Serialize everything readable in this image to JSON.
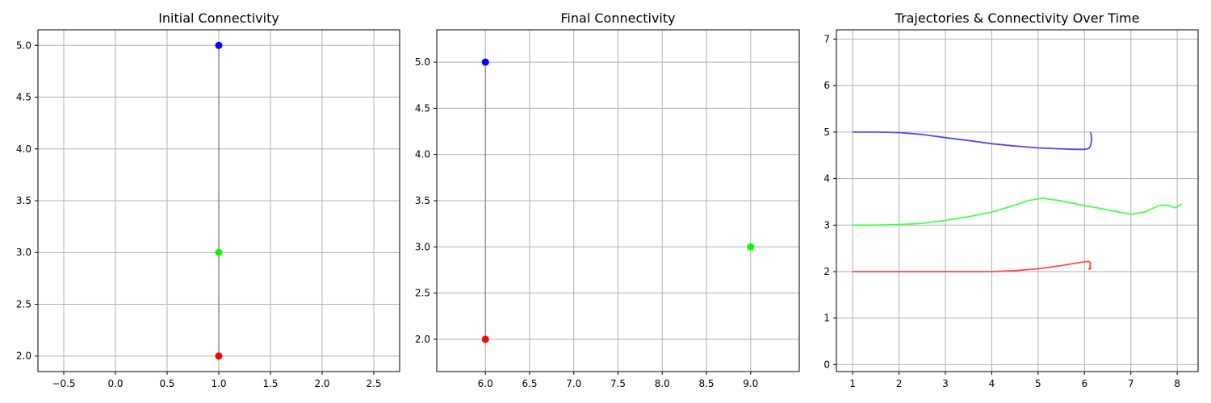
{
  "chart_data": [
    {
      "type": "scatter",
      "title": "Initial Connectivity",
      "xlim": [
        -0.75,
        2.75
      ],
      "ylim": [
        1.85,
        5.15
      ],
      "xticks": [
        -0.5,
        0.0,
        0.5,
        1.0,
        1.5,
        2.0,
        2.5
      ],
      "xtick_labels": [
        "−0.5",
        "0.0",
        "0.5",
        "1.0",
        "1.5",
        "2.0",
        "2.5"
      ],
      "yticks": [
        2.0,
        2.5,
        3.0,
        3.5,
        4.0,
        4.5,
        5.0
      ],
      "ytick_labels": [
        "2.0",
        "2.5",
        "3.0",
        "3.5",
        "4.0",
        "4.5",
        "5.0"
      ],
      "grid": true,
      "points": [
        {
          "x": 1.0,
          "y": 5.0,
          "color": "#0000ff"
        },
        {
          "x": 1.0,
          "y": 3.0,
          "color": "#00ff00"
        },
        {
          "x": 1.0,
          "y": 2.0,
          "color": "#ff0000"
        }
      ],
      "edges": [
        [
          0,
          1
        ],
        [
          1,
          2
        ],
        [
          0,
          2
        ]
      ],
      "edge_color": "#808080"
    },
    {
      "type": "scatter",
      "title": "Final Connectivity",
      "xlim": [
        5.45,
        9.55
      ],
      "ylim": [
        1.65,
        5.35
      ],
      "xticks": [
        6.0,
        6.5,
        7.0,
        7.5,
        8.0,
        8.5,
        9.0
      ],
      "xtick_labels": [
        "6.0",
        "6.5",
        "7.0",
        "7.5",
        "8.0",
        "8.5",
        "9.0"
      ],
      "yticks": [
        2.0,
        2.5,
        3.0,
        3.5,
        4.0,
        4.5,
        5.0
      ],
      "ytick_labels": [
        "2.0",
        "2.5",
        "3.0",
        "3.5",
        "4.0",
        "4.5",
        "5.0"
      ],
      "grid": true,
      "points": [
        {
          "x": 6.0,
          "y": 5.0,
          "color": "#0000ff"
        },
        {
          "x": 9.0,
          "y": 3.0,
          "color": "#00ff00"
        },
        {
          "x": 6.0,
          "y": 2.0,
          "color": "#ff0000"
        }
      ],
      "edges": [
        [
          0,
          2
        ]
      ],
      "edge_color": "#808080"
    },
    {
      "type": "line",
      "title": "Trajectories & Connectivity Over Time",
      "xlim": [
        0.65,
        8.45
      ],
      "ylim": [
        -0.15,
        7.2
      ],
      "xticks": [
        1,
        2,
        3,
        4,
        5,
        6,
        7,
        8
      ],
      "xtick_labels": [
        "1",
        "2",
        "3",
        "4",
        "5",
        "6",
        "7",
        "8"
      ],
      "yticks": [
        0,
        1,
        2,
        3,
        4,
        5,
        6,
        7
      ],
      "ytick_labels": [
        "0",
        "1",
        "2",
        "3",
        "4",
        "5",
        "6",
        "7"
      ],
      "grid": true,
      "series": [
        {
          "color": "#4a4aff",
          "x": [
            1.0,
            1.5,
            2.0,
            2.5,
            3.0,
            3.5,
            4.0,
            4.5,
            5.0,
            5.5,
            5.8,
            6.0,
            6.1,
            6.13,
            6.15,
            6.15,
            6.13
          ],
          "y": [
            5.0,
            5.0,
            4.99,
            4.95,
            4.88,
            4.82,
            4.75,
            4.7,
            4.66,
            4.64,
            4.63,
            4.63,
            4.65,
            4.7,
            4.8,
            4.92,
            5.0
          ]
        },
        {
          "color": "#4aff4a",
          "x": [
            1.0,
            1.5,
            2.0,
            2.5,
            3.0,
            3.5,
            4.0,
            4.5,
            4.8,
            5.1,
            5.5,
            6.0,
            6.5,
            7.0,
            7.3,
            7.6,
            7.8,
            7.95,
            8.05,
            8.1
          ],
          "y": [
            3.0,
            3.0,
            3.01,
            3.04,
            3.1,
            3.18,
            3.28,
            3.43,
            3.53,
            3.58,
            3.52,
            3.42,
            3.33,
            3.23,
            3.28,
            3.42,
            3.43,
            3.37,
            3.43,
            3.45
          ]
        },
        {
          "color": "#ff4a4a",
          "x": [
            1.0,
            1.5,
            2.0,
            2.5,
            3.0,
            3.5,
            4.0,
            4.5,
            5.0,
            5.5,
            5.8,
            6.0,
            6.1,
            6.13,
            6.12,
            6.1,
            6.13,
            6.15
          ],
          "y": [
            2.0,
            2.0,
            2.0,
            2.0,
            2.0,
            2.0,
            2.0,
            2.02,
            2.06,
            2.13,
            2.18,
            2.21,
            2.22,
            2.18,
            2.1,
            2.04,
            2.07,
            2.08
          ]
        }
      ]
    }
  ]
}
